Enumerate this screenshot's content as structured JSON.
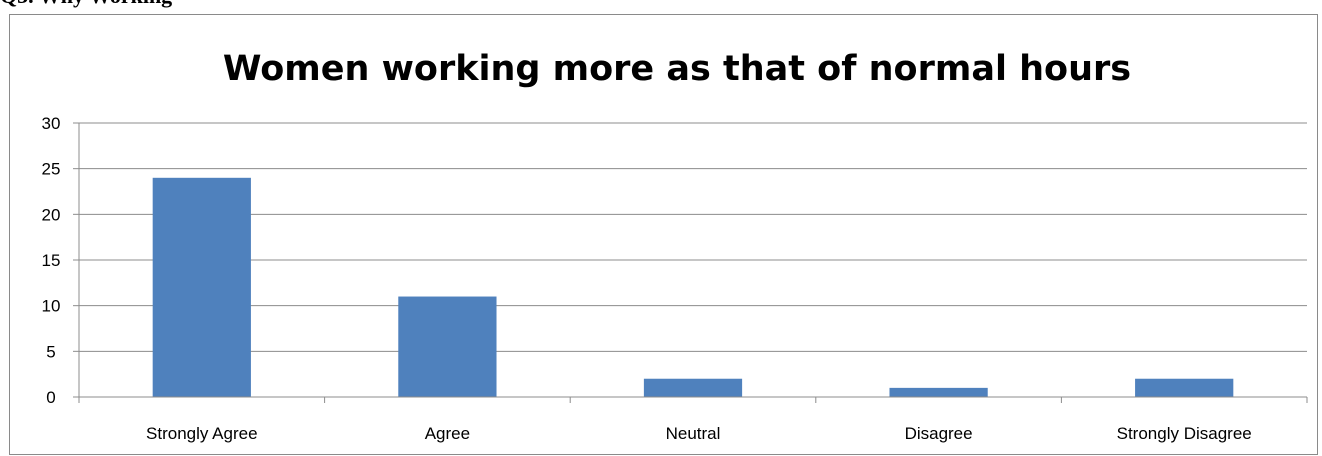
{
  "page_header": "Q3. Why Working",
  "chart_data": {
    "type": "bar",
    "title": "Women working more as that of normal hours",
    "categories": [
      "Strongly Agree",
      "Agree",
      "Neutral",
      "Disagree",
      "Strongly Disagree"
    ],
    "values": [
      24,
      11,
      2,
      1,
      2
    ],
    "ylim": [
      0,
      30
    ],
    "yticks": [
      0,
      5,
      10,
      15,
      20,
      25,
      30
    ],
    "grid": true,
    "legend": "none",
    "bar_color": "#4f81bd"
  }
}
